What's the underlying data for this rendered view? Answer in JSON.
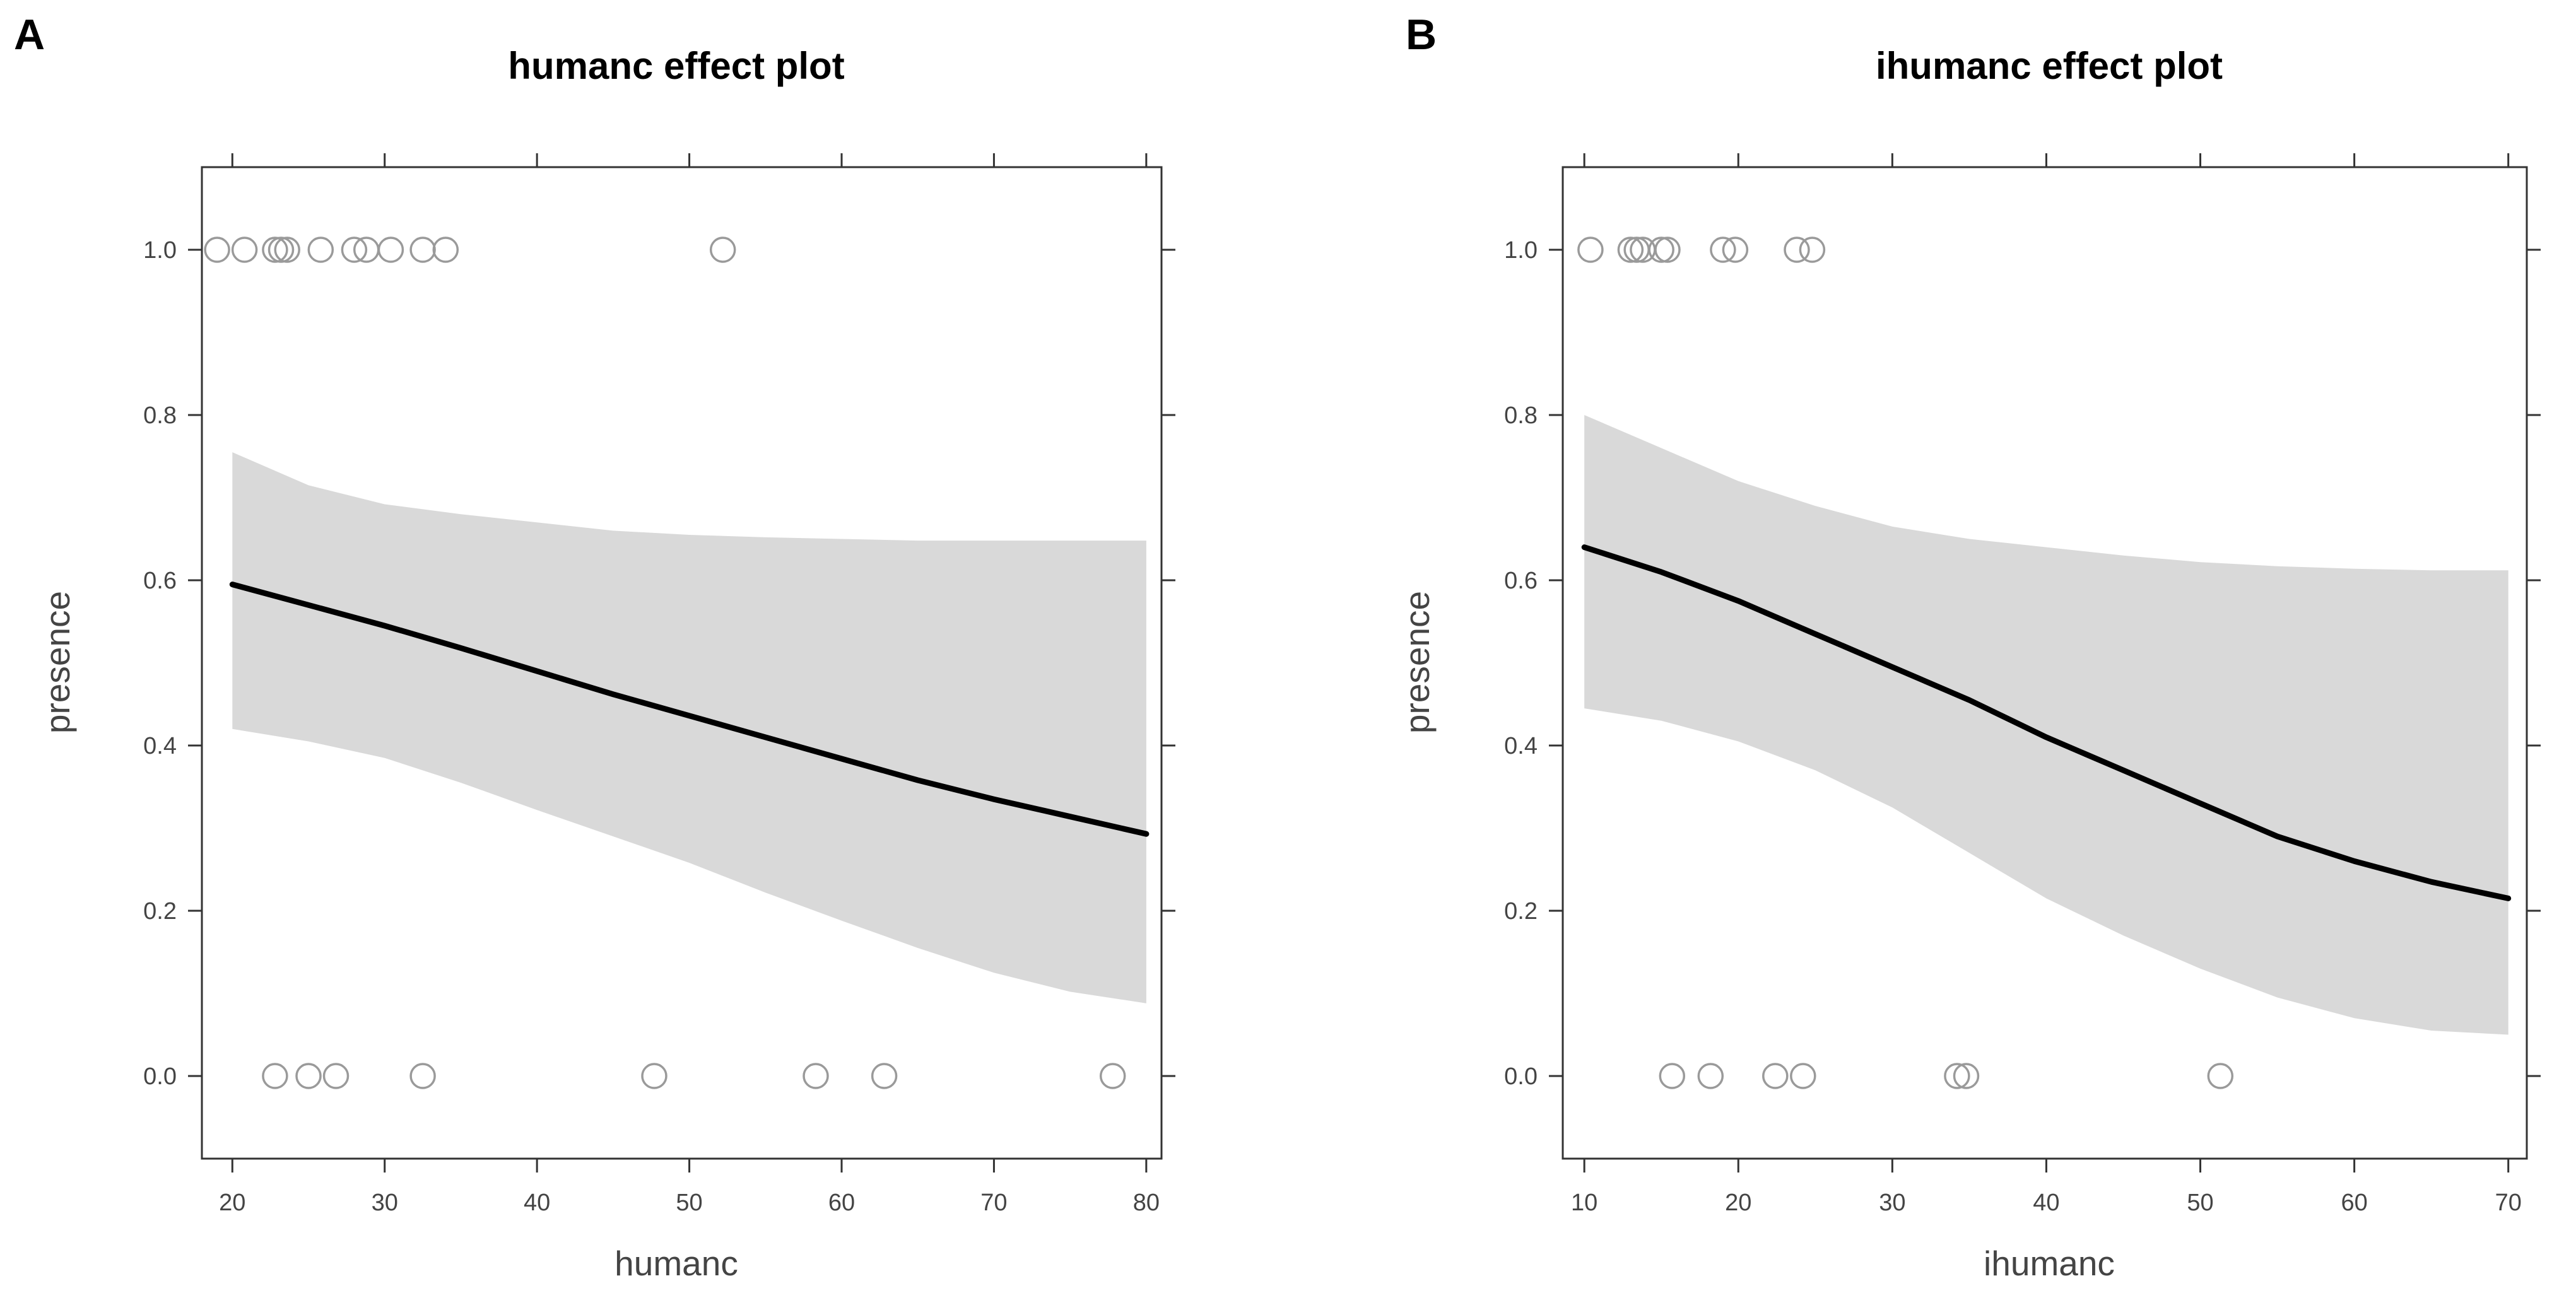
{
  "chart_data": [
    {
      "type": "line",
      "panel_label": "A",
      "title": "humanc effect plot",
      "xlabel": "humanc",
      "ylabel": "presence",
      "xlim": [
        18,
        81
      ],
      "ylim": [
        -0.1,
        1.1
      ],
      "xticks": [
        20,
        30,
        40,
        50,
        60,
        70,
        80
      ],
      "xtick_labels": [
        "20",
        "30",
        "40",
        "50",
        "60",
        "70",
        "80"
      ],
      "yticks": [
        0.0,
        0.2,
        0.4,
        0.6,
        0.8,
        1.0
      ],
      "ytick_labels": [
        "0.0",
        "0.2",
        "0.4",
        "0.6",
        "0.8",
        "1.0"
      ],
      "fit": {
        "x": [
          20,
          25,
          30,
          35,
          40,
          45,
          50,
          55,
          60,
          65,
          70,
          75,
          80
        ],
        "y": [
          0.595,
          0.57,
          0.545,
          0.518,
          0.49,
          0.462,
          0.436,
          0.41,
          0.384,
          0.358,
          0.335,
          0.314,
          0.293
        ]
      },
      "band": {
        "x": [
          20,
          25,
          30,
          35,
          40,
          45,
          50,
          55,
          60,
          65,
          70,
          75,
          80
        ],
        "lower": [
          0.42,
          0.405,
          0.385,
          0.355,
          0.322,
          0.29,
          0.258,
          0.222,
          0.188,
          0.155,
          0.125,
          0.102,
          0.088
        ],
        "upper": [
          0.755,
          0.715,
          0.692,
          0.68,
          0.67,
          0.66,
          0.655,
          0.652,
          0.65,
          0.648,
          0.648,
          0.648,
          0.648
        ]
      },
      "points": [
        {
          "x": 19.0,
          "y": 1
        },
        {
          "x": 20.8,
          "y": 1
        },
        {
          "x": 22.8,
          "y": 1
        },
        {
          "x": 23.2,
          "y": 1
        },
        {
          "x": 23.6,
          "y": 1
        },
        {
          "x": 25.8,
          "y": 1
        },
        {
          "x": 28.0,
          "y": 1
        },
        {
          "x": 28.8,
          "y": 1
        },
        {
          "x": 30.4,
          "y": 1
        },
        {
          "x": 32.5,
          "y": 1
        },
        {
          "x": 34.0,
          "y": 1
        },
        {
          "x": 52.2,
          "y": 1
        },
        {
          "x": 22.8,
          "y": 0
        },
        {
          "x": 25.0,
          "y": 0
        },
        {
          "x": 26.8,
          "y": 0
        },
        {
          "x": 32.5,
          "y": 0
        },
        {
          "x": 47.7,
          "y": 0
        },
        {
          "x": 58.3,
          "y": 0
        },
        {
          "x": 62.8,
          "y": 0
        },
        {
          "x": 77.8,
          "y": 0
        }
      ]
    },
    {
      "type": "line",
      "panel_label": "B",
      "title": "ihumanc effect plot",
      "xlabel": "ihumanc",
      "ylabel": "presence",
      "xlim": [
        8.6,
        71.2
      ],
      "ylim": [
        -0.1,
        1.1
      ],
      "xticks": [
        10,
        20,
        30,
        40,
        50,
        60,
        70
      ],
      "xtick_labels": [
        "10",
        "20",
        "30",
        "40",
        "50",
        "60",
        "70"
      ],
      "yticks": [
        0.0,
        0.2,
        0.4,
        0.6,
        0.8,
        1.0
      ],
      "ytick_labels": [
        "0.0",
        "0.2",
        "0.4",
        "0.6",
        "0.8",
        "1.0"
      ],
      "fit": {
        "x": [
          10,
          15,
          20,
          25,
          30,
          35,
          40,
          45,
          50,
          55,
          60,
          65,
          70
        ],
        "y": [
          0.64,
          0.61,
          0.575,
          0.535,
          0.495,
          0.455,
          0.41,
          0.37,
          0.33,
          0.29,
          0.26,
          0.235,
          0.215
        ]
      },
      "band": {
        "x": [
          10,
          15,
          20,
          25,
          30,
          35,
          40,
          45,
          50,
          55,
          60,
          65,
          70
        ],
        "lower": [
          0.445,
          0.43,
          0.405,
          0.37,
          0.325,
          0.27,
          0.215,
          0.17,
          0.13,
          0.095,
          0.07,
          0.055,
          0.05
        ],
        "upper": [
          0.8,
          0.76,
          0.72,
          0.69,
          0.665,
          0.65,
          0.64,
          0.63,
          0.622,
          0.617,
          0.614,
          0.612,
          0.612
        ]
      },
      "points": [
        {
          "x": 10.4,
          "y": 1
        },
        {
          "x": 13.0,
          "y": 1
        },
        {
          "x": 13.4,
          "y": 1
        },
        {
          "x": 13.8,
          "y": 1
        },
        {
          "x": 15.0,
          "y": 1
        },
        {
          "x": 15.4,
          "y": 1
        },
        {
          "x": 19.0,
          "y": 1
        },
        {
          "x": 19.8,
          "y": 1
        },
        {
          "x": 23.8,
          "y": 1
        },
        {
          "x": 24.8,
          "y": 1
        },
        {
          "x": 15.7,
          "y": 0
        },
        {
          "x": 18.2,
          "y": 0
        },
        {
          "x": 22.4,
          "y": 0
        },
        {
          "x": 24.2,
          "y": 0
        },
        {
          "x": 34.2,
          "y": 0
        },
        {
          "x": 34.8,
          "y": 0
        },
        {
          "x": 51.3,
          "y": 0
        }
      ]
    }
  ]
}
